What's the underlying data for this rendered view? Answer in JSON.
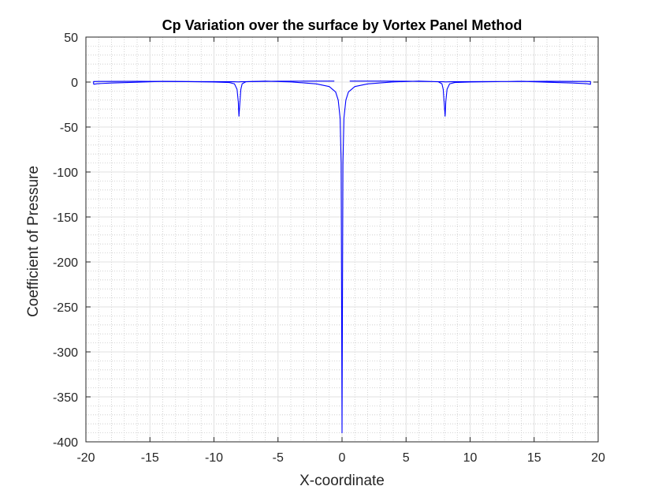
{
  "chart_data": {
    "type": "line",
    "title": "Cp Variation over the surface by Vortex Panel Method",
    "xlabel": "X-coordinate",
    "ylabel": "Coefficient of Pressure",
    "xlim": [
      -20,
      20
    ],
    "ylim": [
      -400,
      50
    ],
    "xticks": [
      -20,
      -15,
      -10,
      -5,
      0,
      5,
      10,
      15,
      20
    ],
    "yticks": [
      -400,
      -350,
      -300,
      -250,
      -200,
      -150,
      -100,
      -50,
      0,
      50
    ],
    "xtick_labels": [
      "-20",
      "-15",
      "-10",
      "-5",
      "0",
      "5",
      "10",
      "15",
      "20"
    ],
    "ytick_labels": [
      "-400",
      "-350",
      "-300",
      "-250",
      "-200",
      "-150",
      "-100",
      "-50",
      "0",
      "50"
    ],
    "grid": true,
    "minor_grid": true,
    "line_color": "#0000ff",
    "series": [
      {
        "values": [
          [
            -19.4,
            -2.5
          ],
          [
            -19.1,
            -1.8
          ],
          [
            -18.0,
            -1.0
          ],
          [
            -16.0,
            -0.2
          ],
          [
            -14.0,
            0.8
          ],
          [
            -12.0,
            0.5
          ],
          [
            -10.0,
            0.0
          ],
          [
            -8.8,
            -0.5
          ],
          [
            -8.4,
            -2.0
          ],
          [
            -8.2,
            -8.0
          ],
          [
            -8.1,
            -22.0
          ],
          [
            -8.05,
            -38.0
          ],
          [
            -8.0,
            -28.0
          ],
          [
            -7.9,
            -8.0
          ],
          [
            -7.8,
            -2.0
          ],
          [
            -7.5,
            0.4
          ],
          [
            -6.0,
            1.0
          ],
          [
            -4.0,
            0.2
          ],
          [
            -2.0,
            -2.0
          ],
          [
            -1.0,
            -5.0
          ],
          [
            -0.5,
            -11.0
          ],
          [
            -0.3,
            -20.0
          ],
          [
            -0.15,
            -40.0
          ],
          [
            -0.07,
            -90.0
          ],
          [
            0.0,
            -390.0
          ],
          [
            0.07,
            -90.0
          ],
          [
            0.15,
            -40.0
          ],
          [
            0.3,
            -20.0
          ],
          [
            0.5,
            -11.0
          ],
          [
            1.0,
            -5.0
          ],
          [
            2.0,
            -2.0
          ],
          [
            4.0,
            0.2
          ],
          [
            6.0,
            1.0
          ],
          [
            7.5,
            0.4
          ],
          [
            7.8,
            -2.0
          ],
          [
            7.9,
            -8.0
          ],
          [
            8.0,
            -28.0
          ],
          [
            8.05,
            -38.0
          ],
          [
            8.1,
            -22.0
          ],
          [
            8.2,
            -8.0
          ],
          [
            8.4,
            -2.0
          ],
          [
            8.8,
            -0.5
          ],
          [
            10.0,
            0.0
          ],
          [
            12.0,
            0.5
          ],
          [
            14.0,
            0.8
          ],
          [
            16.0,
            -0.2
          ],
          [
            18.0,
            -1.0
          ],
          [
            19.1,
            -1.8
          ],
          [
            19.4,
            -2.5
          ],
          [
            19.4,
            0.6
          ],
          [
            19.0,
            0.7
          ],
          [
            16.0,
            0.8
          ],
          [
            13.0,
            0.6
          ],
          [
            10.0,
            0.5
          ],
          [
            8.5,
            0.4
          ],
          [
            8.1,
            0.2
          ],
          [
            7.9,
            0.4
          ],
          [
            5.0,
            0.9
          ],
          [
            3.0,
            1.0
          ],
          [
            1.5,
            1.0
          ],
          [
            0.6,
            1.0
          ]
        ]
      },
      {
        "values": [
          [
            -0.6,
            1.0
          ],
          [
            -1.5,
            1.0
          ],
          [
            -3.0,
            1.0
          ],
          [
            -5.0,
            0.9
          ],
          [
            -7.9,
            0.4
          ],
          [
            -8.1,
            0.2
          ],
          [
            -8.5,
            0.4
          ],
          [
            -10.0,
            0.5
          ],
          [
            -13.0,
            0.6
          ],
          [
            -16.0,
            0.8
          ],
          [
            -19.0,
            0.7
          ],
          [
            -19.4,
            0.6
          ],
          [
            -19.4,
            -2.5
          ]
        ]
      }
    ]
  }
}
